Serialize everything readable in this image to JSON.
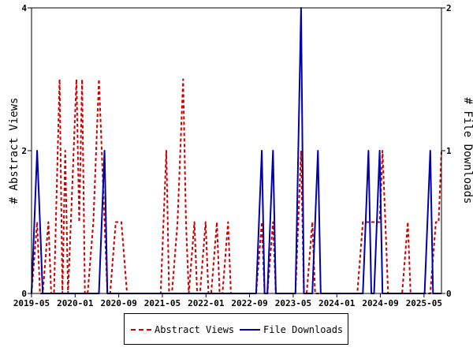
{
  "chart_data": {
    "type": "line",
    "x_ticks": [
      "2019-05",
      "2020-01",
      "2020-09",
      "2021-05",
      "2022-01",
      "2022-09",
      "2023-05",
      "2024-01",
      "2024-09",
      "2025-05"
    ],
    "y_left": {
      "label": "# Abstract Views",
      "ticks": [
        "0",
        "2",
        "4"
      ],
      "range": [
        0,
        4
      ]
    },
    "y_right": {
      "label": "# File Downloads",
      "ticks": [
        "0",
        "1",
        "2"
      ],
      "range": [
        0,
        2
      ]
    },
    "x_range_months": [
      0,
      73
    ],
    "series": [
      {
        "name": "Abstract Views",
        "axis": "left",
        "color": "#cc0000",
        "style": "dashed",
        "points": [
          [
            0,
            0
          ],
          [
            1,
            1
          ],
          [
            1.5,
            0
          ],
          [
            2,
            0
          ],
          [
            3,
            1
          ],
          [
            3.5,
            0
          ],
          [
            4,
            0
          ],
          [
            5,
            3
          ],
          [
            5.5,
            0
          ],
          [
            6,
            2
          ],
          [
            6.5,
            0
          ],
          [
            7,
            1
          ],
          [
            8,
            3
          ],
          [
            8.5,
            1
          ],
          [
            9,
            3
          ],
          [
            9.5,
            0
          ],
          [
            10,
            0
          ],
          [
            11,
            1
          ],
          [
            12,
            3
          ],
          [
            13,
            1
          ],
          [
            13.5,
            0
          ],
          [
            14,
            0
          ],
          [
            15,
            1
          ],
          [
            16,
            1
          ],
          [
            17,
            0
          ],
          [
            18,
            0
          ],
          [
            19,
            0
          ],
          [
            20,
            0
          ],
          [
            21,
            0
          ],
          [
            22,
            0
          ],
          [
            23,
            0
          ],
          [
            24,
            2
          ],
          [
            24.5,
            0
          ],
          [
            25,
            0
          ],
          [
            26,
            1
          ],
          [
            27,
            3
          ],
          [
            27.5,
            1
          ],
          [
            28,
            0
          ],
          [
            29,
            1
          ],
          [
            29.5,
            0
          ],
          [
            30,
            0
          ],
          [
            31,
            1
          ],
          [
            31.5,
            0
          ],
          [
            32,
            0
          ],
          [
            33,
            1
          ],
          [
            33.5,
            0
          ],
          [
            34,
            0
          ],
          [
            35,
            1
          ],
          [
            35.5,
            0
          ],
          [
            36,
            0
          ],
          [
            37,
            0
          ],
          [
            38,
            0
          ],
          [
            39,
            0
          ],
          [
            40,
            0
          ],
          [
            41,
            1
          ],
          [
            41.5,
            0
          ],
          [
            42,
            0
          ],
          [
            43,
            1
          ],
          [
            43.5,
            0
          ],
          [
            44,
            0
          ],
          [
            45,
            0
          ],
          [
            46,
            0
          ],
          [
            47,
            0
          ],
          [
            48,
            2
          ],
          [
            48.5,
            0
          ],
          [
            49,
            0
          ],
          [
            50,
            1
          ],
          [
            50.5,
            0
          ],
          [
            51,
            0
          ],
          [
            52,
            0
          ],
          [
            53,
            0
          ],
          [
            54,
            0
          ],
          [
            55,
            0
          ],
          [
            56,
            0
          ],
          [
            57,
            0
          ],
          [
            58,
            0
          ],
          [
            59,
            1
          ],
          [
            60,
            1
          ],
          [
            61,
            1
          ],
          [
            62,
            1
          ],
          [
            62.5,
            2
          ],
          [
            63,
            1
          ],
          [
            63.5,
            0
          ],
          [
            64,
            0
          ],
          [
            65,
            0
          ],
          [
            66,
            0
          ],
          [
            67,
            1
          ],
          [
            67.5,
            0
          ],
          [
            68,
            0
          ],
          [
            69,
            0
          ],
          [
            70,
            0
          ],
          [
            71,
            0
          ],
          [
            72,
            1
          ],
          [
            72.5,
            1
          ],
          [
            73,
            2
          ]
        ]
      },
      {
        "name": "File Downloads",
        "axis": "right",
        "color": "#0000aa",
        "style": "solid",
        "points": [
          [
            0,
            0
          ],
          [
            0.5,
            0.5
          ],
          [
            1,
            1
          ],
          [
            1.5,
            0.5
          ],
          [
            2,
            0
          ],
          [
            3,
            0
          ],
          [
            4,
            0
          ],
          [
            5,
            0
          ],
          [
            6,
            0
          ],
          [
            7,
            0
          ],
          [
            8,
            0
          ],
          [
            9,
            0
          ],
          [
            10,
            0
          ],
          [
            11,
            0
          ],
          [
            12,
            0
          ],
          [
            13,
            1
          ],
          [
            13.5,
            0
          ],
          [
            14,
            0
          ],
          [
            15,
            0
          ],
          [
            16,
            0
          ],
          [
            17,
            0
          ],
          [
            18,
            0
          ],
          [
            19,
            0
          ],
          [
            20,
            0
          ],
          [
            21,
            0
          ],
          [
            22,
            0
          ],
          [
            23,
            0
          ],
          [
            24,
            0
          ],
          [
            25,
            0
          ],
          [
            26,
            0
          ],
          [
            27,
            0
          ],
          [
            28,
            0
          ],
          [
            29,
            0
          ],
          [
            30,
            0
          ],
          [
            31,
            0
          ],
          [
            32,
            0
          ],
          [
            33,
            0
          ],
          [
            34,
            0
          ],
          [
            35,
            0
          ],
          [
            36,
            0
          ],
          [
            37,
            0
          ],
          [
            38,
            0
          ],
          [
            39,
            0
          ],
          [
            40,
            0
          ],
          [
            41,
            1
          ],
          [
            41.5,
            0
          ],
          [
            42,
            0
          ],
          [
            43,
            1
          ],
          [
            43.5,
            0
          ],
          [
            44,
            0
          ],
          [
            45,
            0
          ],
          [
            46,
            0
          ],
          [
            47,
            0
          ],
          [
            48,
            2
          ],
          [
            48.5,
            0
          ],
          [
            49,
            0
          ],
          [
            50,
            0
          ],
          [
            51,
            1
          ],
          [
            51.5,
            0
          ],
          [
            52,
            0
          ],
          [
            53,
            0
          ],
          [
            54,
            0
          ],
          [
            55,
            0
          ],
          [
            56,
            0
          ],
          [
            57,
            0
          ],
          [
            58,
            0
          ],
          [
            59,
            0
          ],
          [
            60,
            1
          ],
          [
            60.5,
            0
          ],
          [
            61,
            0
          ],
          [
            62,
            1
          ],
          [
            62.5,
            0
          ],
          [
            63,
            0
          ],
          [
            64,
            0
          ],
          [
            65,
            0
          ],
          [
            66,
            0
          ],
          [
            67,
            0
          ],
          [
            68,
            0
          ],
          [
            69,
            0
          ],
          [
            70,
            0
          ],
          [
            71,
            1
          ],
          [
            71.5,
            0
          ],
          [
            72,
            0
          ],
          [
            73,
            0
          ]
        ]
      }
    ],
    "legend_position": "bottom"
  }
}
